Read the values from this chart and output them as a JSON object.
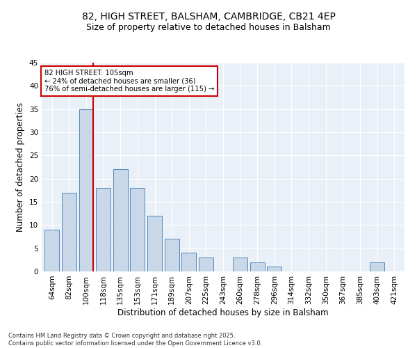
{
  "title_line1": "82, HIGH STREET, BALSHAM, CAMBRIDGE, CB21 4EP",
  "title_line2": "Size of property relative to detached houses in Balsham",
  "xlabel": "Distribution of detached houses by size in Balsham",
  "ylabel": "Number of detached properties",
  "categories": [
    "64sqm",
    "82sqm",
    "100sqm",
    "118sqm",
    "135sqm",
    "153sqm",
    "171sqm",
    "189sqm",
    "207sqm",
    "225sqm",
    "243sqm",
    "260sqm",
    "278sqm",
    "296sqm",
    "314sqm",
    "332sqm",
    "350sqm",
    "367sqm",
    "385sqm",
    "403sqm",
    "421sqm"
  ],
  "values": [
    9,
    17,
    35,
    18,
    22,
    18,
    12,
    7,
    4,
    3,
    0,
    3,
    2,
    1,
    0,
    0,
    0,
    0,
    0,
    2,
    0
  ],
  "bar_color": "#c8d8e8",
  "bar_edge_color": "#5588bb",
  "marker_bar_index": 2,
  "marker_label": "82 HIGH STREET: 105sqm",
  "marker_pct_smaller": "24% of detached houses are smaller (36)",
  "marker_pct_larger": "76% of semi-detached houses are larger (115)",
  "marker_color": "#cc0000",
  "ylim": [
    0,
    45
  ],
  "yticks": [
    0,
    5,
    10,
    15,
    20,
    25,
    30,
    35,
    40,
    45
  ],
  "background_color": "#eaf0f8",
  "grid_color": "#ffffff",
  "footer_line1": "Contains HM Land Registry data © Crown copyright and database right 2025.",
  "footer_line2": "Contains public sector information licensed under the Open Government Licence v3.0."
}
